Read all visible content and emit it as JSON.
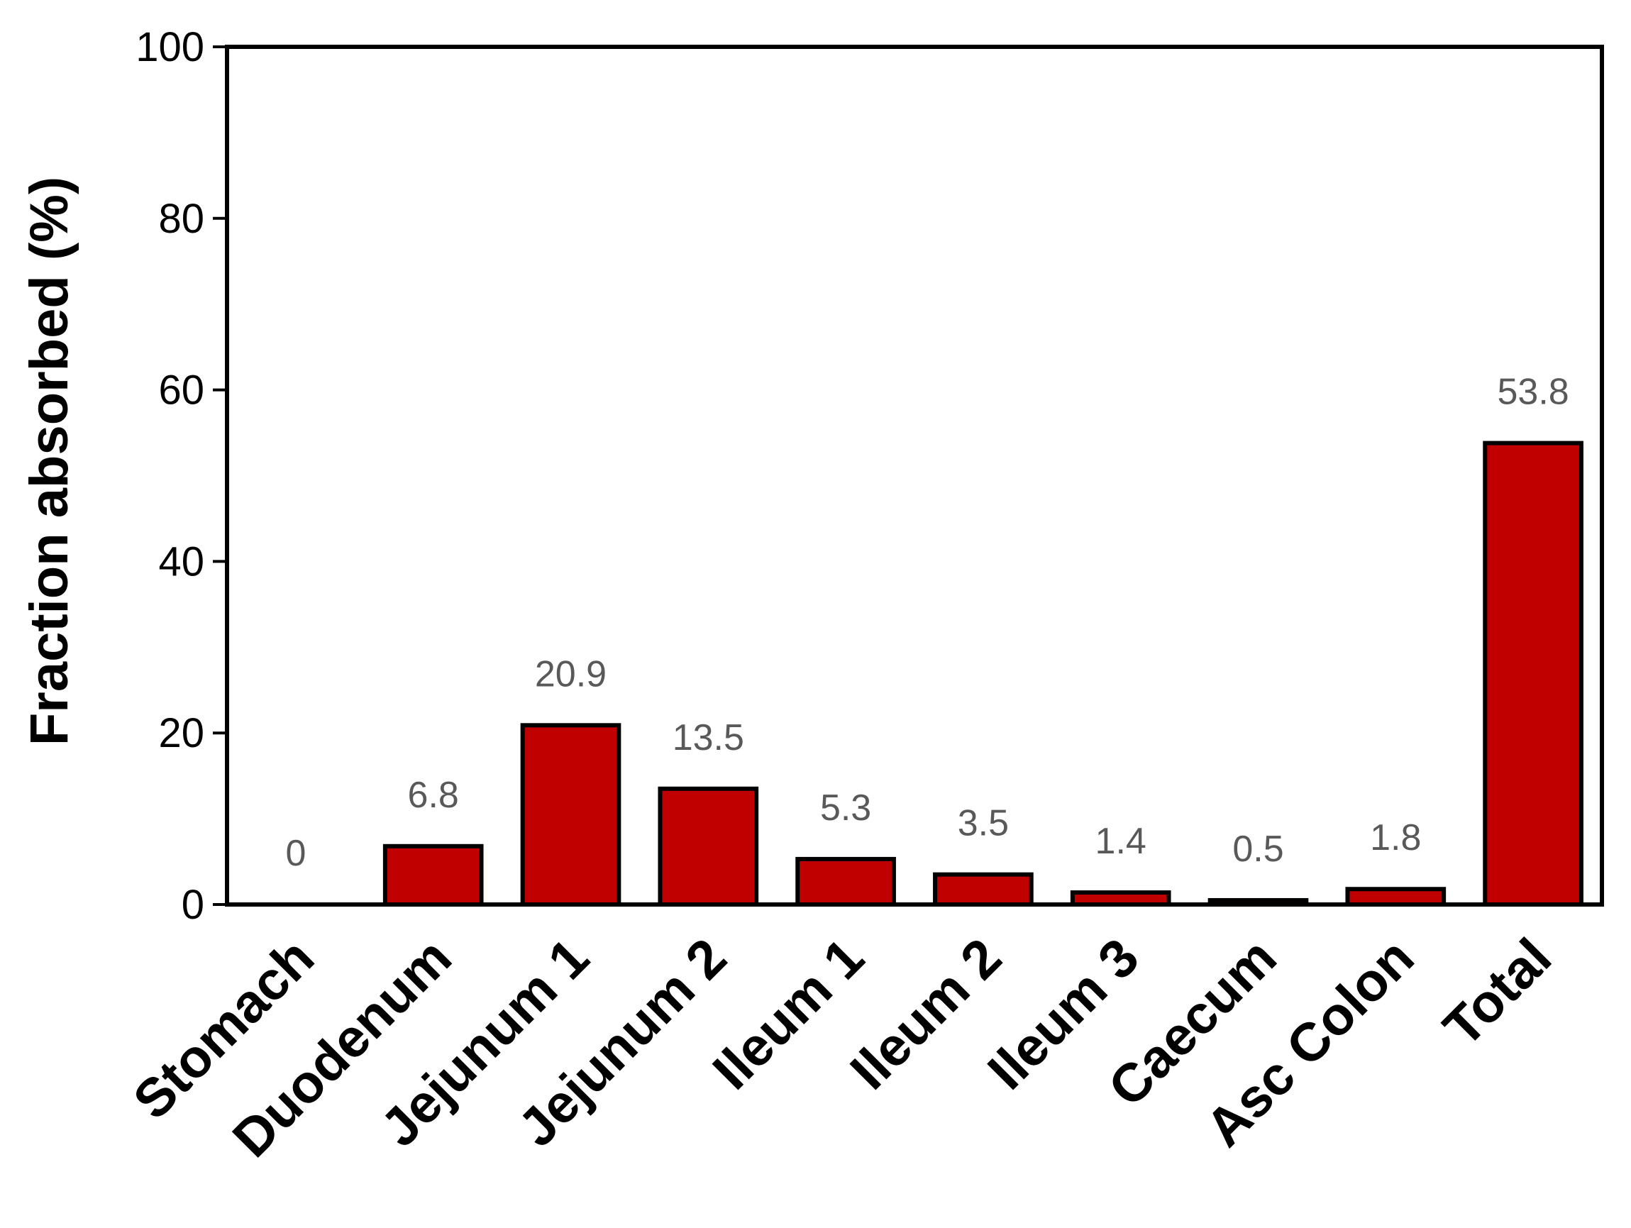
{
  "chart_data": {
    "type": "bar",
    "title": "",
    "xlabel": "",
    "ylabel": "Fraction absorbed (%)",
    "ylim": [
      0,
      100
    ],
    "yticks": [
      "0",
      "20",
      "40",
      "60",
      "80",
      "100"
    ],
    "categories": [
      "Stomach",
      "Duodenum",
      "Jejunum 1",
      "Jejunum 2",
      "Ileum 1",
      "Ileum 2",
      "Ileum 3",
      "Caecum",
      "Asc Colon",
      "Total"
    ],
    "values": [
      0,
      6.8,
      20.9,
      13.5,
      5.3,
      3.5,
      1.4,
      0.5,
      1.8,
      53.8
    ],
    "data_labels": [
      "0",
      "6.8",
      "20.9",
      "13.5",
      "5.3",
      "3.5",
      "1.4",
      "0.5",
      "1.8",
      "53.8"
    ],
    "bar_color": "#c00000",
    "bar_edge_color": "#000000",
    "data_label_color": "#595959",
    "grid": false,
    "legend": "none"
  }
}
